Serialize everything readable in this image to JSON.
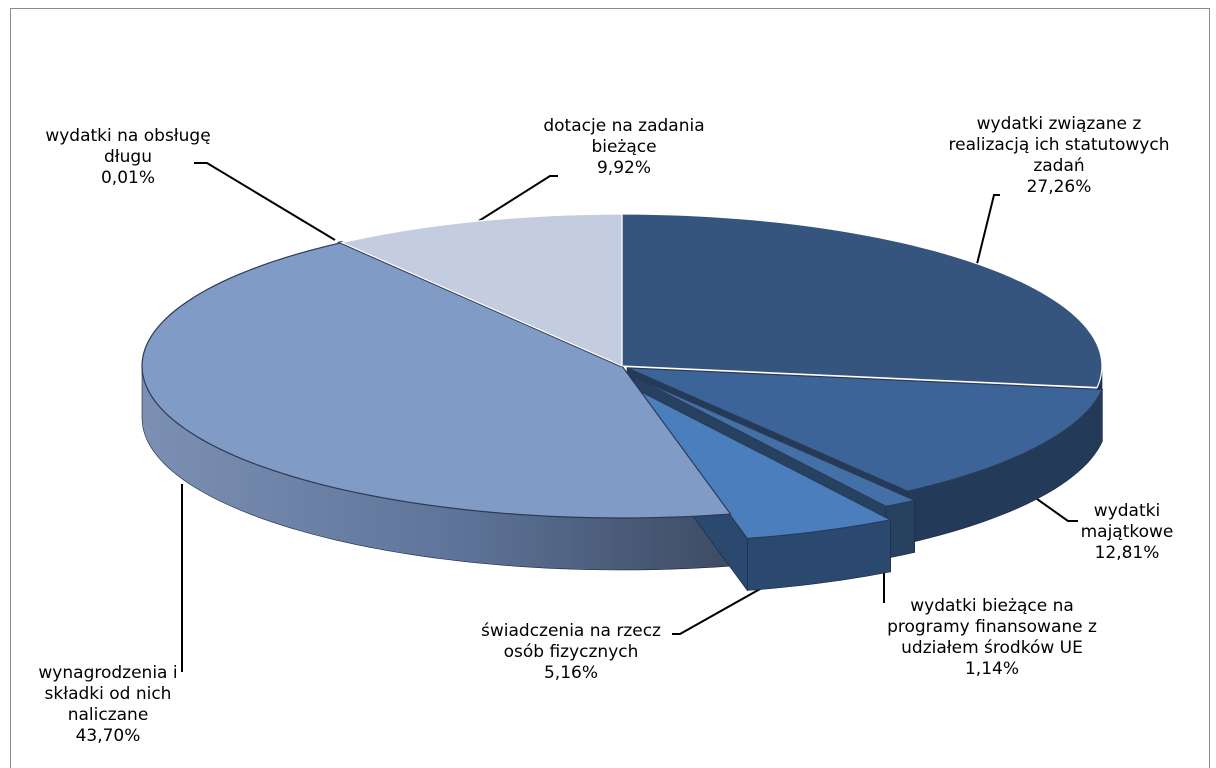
{
  "chart_data": {
    "type": "pie",
    "style": "3d-exploded",
    "slices": [
      {
        "label": "wydatki związane z realizacją ich statutowych zadań",
        "value": 27.26,
        "display": "27,26%",
        "color": "#35557f"
      },
      {
        "label": "wydatki majątkowe",
        "value": 12.81,
        "display": "12,81%",
        "color": "#3c6498"
      },
      {
        "label": "wydatki bieżące na programy finansowane z udziałem środków UE",
        "value": 1.14,
        "display": "1,14%",
        "color": "#4470a8"
      },
      {
        "label": "świadczenia na rzecz osób fizycznych",
        "value": 5.16,
        "display": "5,16%",
        "color": "#4a7ebd"
      },
      {
        "label": "wynagrodzenia i składki od nich naliczane",
        "value": 43.7,
        "display": "43,70%",
        "color": "#809bc5"
      },
      {
        "label": "wydatki na obsługę długu",
        "value": 0.01,
        "display": "0,01%",
        "color": "#5a6f90"
      },
      {
        "label": "dotacje na zadania bieżące",
        "value": 9.92,
        "display": "9,92%",
        "color": "#c4cde0"
      }
    ],
    "legend": "none"
  }
}
